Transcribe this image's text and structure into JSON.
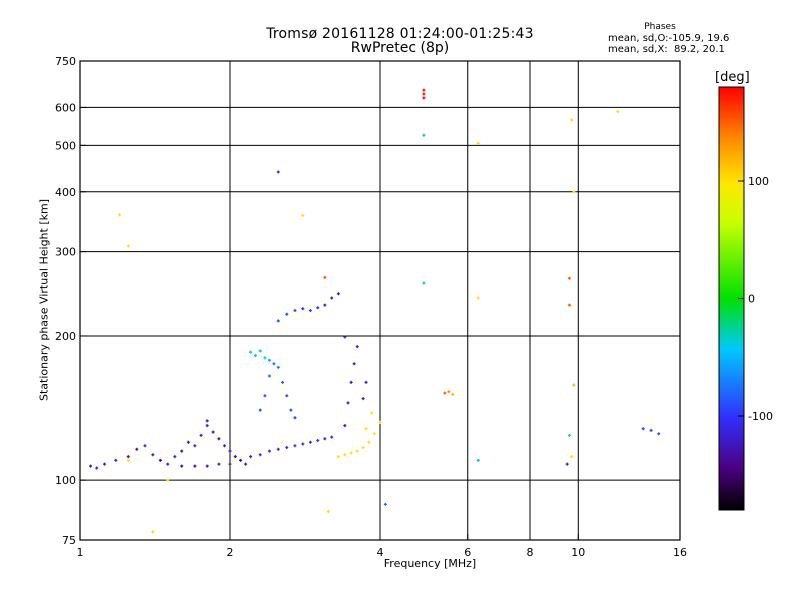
{
  "title_line1": "Tromsø 20161128 01:24:00-01:25:43",
  "title_line2": "RwPretec (8p)",
  "phases_header": "Phases",
  "phases_line1": "mean, sd,O:-105.9, 19.6",
  "phases_line2": "mean, sd,X:  89.2, 20.1",
  "colorbar": {
    "unit_label": "[deg]",
    "ticks": [
      "100",
      "0",
      "-100"
    ],
    "tick_values": [
      100,
      0,
      -100
    ],
    "range": [
      -180,
      180
    ]
  },
  "chart_data": {
    "type": "scatter",
    "title": "Tromsø 20161128 01:24:00-01:25:43",
    "subtitle": "RwPretec (8p)",
    "xlabel": "Frequency [MHz]",
    "ylabel": "Stationary phase Virtual Height [km]",
    "x_scale": "log",
    "y_scale": "log",
    "xlim": [
      1,
      16
    ],
    "ylim": [
      75,
      750
    ],
    "x_ticks": [
      1,
      2,
      4,
      6,
      8,
      10,
      16
    ],
    "x_tick_labels": [
      "1",
      "2",
      "4",
      "6",
      "8",
      "10",
      "16"
    ],
    "y_ticks": [
      75,
      100,
      200,
      300,
      400,
      500,
      600,
      750
    ],
    "y_tick_labels": [
      "75",
      "100",
      "200",
      "300",
      "400",
      "500",
      "600",
      "750"
    ],
    "grid": true,
    "color_encoding": "phase (deg)",
    "points": [
      {
        "f": 1.05,
        "h": 107,
        "p": -120
      },
      {
        "f": 1.08,
        "h": 106,
        "p": -115
      },
      {
        "f": 1.12,
        "h": 108,
        "p": -125
      },
      {
        "f": 1.18,
        "h": 110,
        "p": -110
      },
      {
        "f": 1.25,
        "h": 112,
        "p": -120
      },
      {
        "f": 1.3,
        "h": 116,
        "p": -130
      },
      {
        "f": 1.35,
        "h": 118,
        "p": -115
      },
      {
        "f": 1.4,
        "h": 113,
        "p": -125
      },
      {
        "f": 1.45,
        "h": 110,
        "p": -135
      },
      {
        "f": 1.5,
        "h": 108,
        "p": -120
      },
      {
        "f": 1.55,
        "h": 112,
        "p": -110
      },
      {
        "f": 1.6,
        "h": 115,
        "p": -125
      },
      {
        "f": 1.65,
        "h": 120,
        "p": -130
      },
      {
        "f": 1.7,
        "h": 118,
        "p": -115
      },
      {
        "f": 1.75,
        "h": 124,
        "p": -120
      },
      {
        "f": 1.8,
        "h": 130,
        "p": -110
      },
      {
        "f": 1.85,
        "h": 126,
        "p": -130
      },
      {
        "f": 1.9,
        "h": 122,
        "p": -125
      },
      {
        "f": 1.95,
        "h": 118,
        "p": -120
      },
      {
        "f": 2.0,
        "h": 115,
        "p": -115
      },
      {
        "f": 2.05,
        "h": 112,
        "p": -125
      },
      {
        "f": 2.1,
        "h": 110,
        "p": -130
      },
      {
        "f": 2.15,
        "h": 108,
        "p": -120
      },
      {
        "f": 1.6,
        "h": 107,
        "p": -130
      },
      {
        "f": 1.7,
        "h": 107,
        "p": -135
      },
      {
        "f": 1.8,
        "h": 107,
        "p": -125
      },
      {
        "f": 1.9,
        "h": 108,
        "p": -120
      },
      {
        "f": 2.0,
        "h": 108,
        "p": -115
      },
      {
        "f": 2.2,
        "h": 112,
        "p": -110
      },
      {
        "f": 2.3,
        "h": 113,
        "p": -105
      },
      {
        "f": 2.4,
        "h": 115,
        "p": -100
      },
      {
        "f": 2.5,
        "h": 116,
        "p": -110
      },
      {
        "f": 2.6,
        "h": 117,
        "p": -105
      },
      {
        "f": 2.7,
        "h": 118,
        "p": -100
      },
      {
        "f": 2.8,
        "h": 119,
        "p": -110
      },
      {
        "f": 2.9,
        "h": 120,
        "p": -105
      },
      {
        "f": 3.0,
        "h": 121,
        "p": -100
      },
      {
        "f": 3.1,
        "h": 122,
        "p": -110
      },
      {
        "f": 3.2,
        "h": 123,
        "p": -105
      },
      {
        "f": 2.3,
        "h": 140,
        "p": -95
      },
      {
        "f": 2.35,
        "h": 150,
        "p": -90
      },
      {
        "f": 2.4,
        "h": 165,
        "p": -80
      },
      {
        "f": 2.45,
        "h": 175,
        "p": -75
      },
      {
        "f": 2.5,
        "h": 172,
        "p": -70
      },
      {
        "f": 2.55,
        "h": 160,
        "p": -85
      },
      {
        "f": 2.6,
        "h": 150,
        "p": -90
      },
      {
        "f": 2.65,
        "h": 140,
        "p": -95
      },
      {
        "f": 2.7,
        "h": 135,
        "p": -100
      },
      {
        "f": 2.2,
        "h": 185,
        "p": -45
      },
      {
        "f": 2.25,
        "h": 182,
        "p": -40
      },
      {
        "f": 2.3,
        "h": 186,
        "p": -50
      },
      {
        "f": 2.35,
        "h": 180,
        "p": -42
      },
      {
        "f": 2.4,
        "h": 178,
        "p": -55
      },
      {
        "f": 2.5,
        "h": 215,
        "p": -90
      },
      {
        "f": 2.6,
        "h": 222,
        "p": -95
      },
      {
        "f": 2.7,
        "h": 226,
        "p": -90
      },
      {
        "f": 2.8,
        "h": 228,
        "p": -100
      },
      {
        "f": 2.9,
        "h": 226,
        "p": -95
      },
      {
        "f": 3.0,
        "h": 229,
        "p": -100
      },
      {
        "f": 3.1,
        "h": 232,
        "p": -110
      },
      {
        "f": 3.2,
        "h": 240,
        "p": -120
      },
      {
        "f": 3.3,
        "h": 245,
        "p": -125
      },
      {
        "f": 3.4,
        "h": 130,
        "p": -120
      },
      {
        "f": 3.45,
        "h": 145,
        "p": -125
      },
      {
        "f": 3.5,
        "h": 160,
        "p": -130
      },
      {
        "f": 3.55,
        "h": 175,
        "p": -125
      },
      {
        "f": 3.6,
        "h": 190,
        "p": -120
      },
      {
        "f": 3.4,
        "h": 199,
        "p": -120
      },
      {
        "f": 3.7,
        "h": 148,
        "p": -115
      },
      {
        "f": 3.75,
        "h": 160,
        "p": -120
      },
      {
        "f": 3.3,
        "h": 112,
        "p": 100
      },
      {
        "f": 3.4,
        "h": 113,
        "p": 100
      },
      {
        "f": 3.5,
        "h": 114,
        "p": 100
      },
      {
        "f": 3.6,
        "h": 115,
        "p": 100
      },
      {
        "f": 3.7,
        "h": 117,
        "p": 100
      },
      {
        "f": 3.8,
        "h": 120,
        "p": 100
      },
      {
        "f": 3.9,
        "h": 125,
        "p": 100
      },
      {
        "f": 4.0,
        "h": 132,
        "p": 100
      },
      {
        "f": 3.85,
        "h": 138,
        "p": 100
      },
      {
        "f": 3.75,
        "h": 128,
        "p": 100
      },
      {
        "f": 1.25,
        "h": 110,
        "p": 100
      },
      {
        "f": 1.5,
        "h": 100,
        "p": 100
      },
      {
        "f": 1.8,
        "h": 133,
        "p": -120
      },
      {
        "f": 4.9,
        "h": 652,
        "p": 180
      },
      {
        "f": 4.9,
        "h": 640,
        "p": 180
      },
      {
        "f": 4.9,
        "h": 628,
        "p": 180
      },
      {
        "f": 4.9,
        "h": 525,
        "p": -30
      },
      {
        "f": 6.3,
        "h": 505,
        "p": 100
      },
      {
        "f": 9.7,
        "h": 565,
        "p": 100
      },
      {
        "f": 12.0,
        "h": 588,
        "p": 100
      },
      {
        "f": 9.8,
        "h": 400,
        "p": 100
      },
      {
        "f": 1.2,
        "h": 358,
        "p": 100
      },
      {
        "f": 1.25,
        "h": 308,
        "p": 100
      },
      {
        "f": 2.8,
        "h": 357,
        "p": 100
      },
      {
        "f": 2.5,
        "h": 440,
        "p": -100
      },
      {
        "f": 9.6,
        "h": 264,
        "p": 150
      },
      {
        "f": 9.6,
        "h": 232,
        "p": 150
      },
      {
        "f": 6.3,
        "h": 240,
        "p": 100
      },
      {
        "f": 4.9,
        "h": 258,
        "p": -30
      },
      {
        "f": 3.1,
        "h": 265,
        "p": 150
      },
      {
        "f": 5.5,
        "h": 153,
        "p": 130
      },
      {
        "f": 5.6,
        "h": 151,
        "p": 120
      },
      {
        "f": 5.4,
        "h": 152,
        "p": 150
      },
      {
        "f": 9.8,
        "h": 158,
        "p": 120
      },
      {
        "f": 9.6,
        "h": 124,
        "p": -40
      },
      {
        "f": 9.7,
        "h": 112,
        "p": 100
      },
      {
        "f": 9.5,
        "h": 108,
        "p": -120
      },
      {
        "f": 6.3,
        "h": 110,
        "p": -30
      },
      {
        "f": 14.0,
        "h": 127,
        "p": -90
      },
      {
        "f": 14.5,
        "h": 125,
        "p": -90
      },
      {
        "f": 13.5,
        "h": 128,
        "p": -90
      },
      {
        "f": 4.1,
        "h": 89,
        "p": -80
      },
      {
        "f": 1.4,
        "h": 78,
        "p": 60
      },
      {
        "f": 3.15,
        "h": 86,
        "p": 100
      }
    ]
  }
}
